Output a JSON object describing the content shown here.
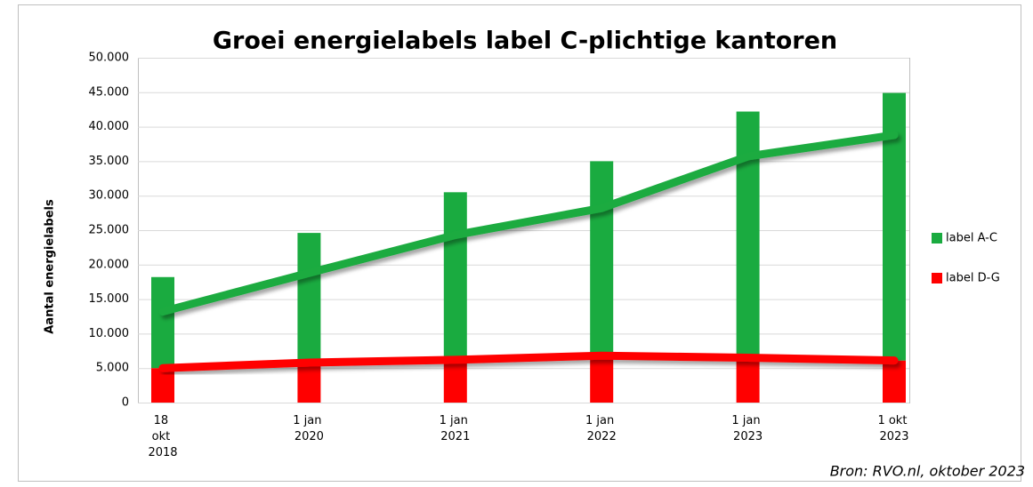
{
  "chart_data": {
    "type": "bar",
    "title": "Groei energielabels label C-plichtige kantoren",
    "y_label": "Aantal energielabels",
    "source": "Bron: RVO.nl, oktober 2023",
    "categories": [
      "18 okt 2018",
      "1 jan 2020",
      "1 jan 2021",
      "1 jan 2022",
      "1 jan 2023",
      "1 okt 2023"
    ],
    "series": [
      {
        "name": "label A-C",
        "color": "#1aab40",
        "values": [
          13200,
          18800,
          24300,
          28200,
          35700,
          38800
        ]
      },
      {
        "name": "label D-G",
        "color": "#ff0000",
        "values": [
          5000,
          5800,
          6200,
          6800,
          6500,
          6100
        ]
      }
    ],
    "stacked": true,
    "ylim": [
      0,
      50000
    ],
    "yticks": [
      0,
      {
        "value": 5000,
        "label": "5.000"
      },
      {
        "value": 10000,
        "label": "10.000"
      },
      {
        "value": 15000,
        "label": "15.000"
      },
      {
        "value": 20000,
        "label": "20.000"
      },
      {
        "value": 25000,
        "label": "25.000"
      },
      {
        "value": 30000,
        "label": "30.000"
      },
      {
        "value": 35000,
        "label": "35.000"
      },
      {
        "value": 40000,
        "label": "40.000"
      },
      {
        "value": 45000,
        "label": "45.000"
      },
      {
        "value": 50000,
        "label": "50.000"
      }
    ],
    "grid": true,
    "legend": "right"
  }
}
